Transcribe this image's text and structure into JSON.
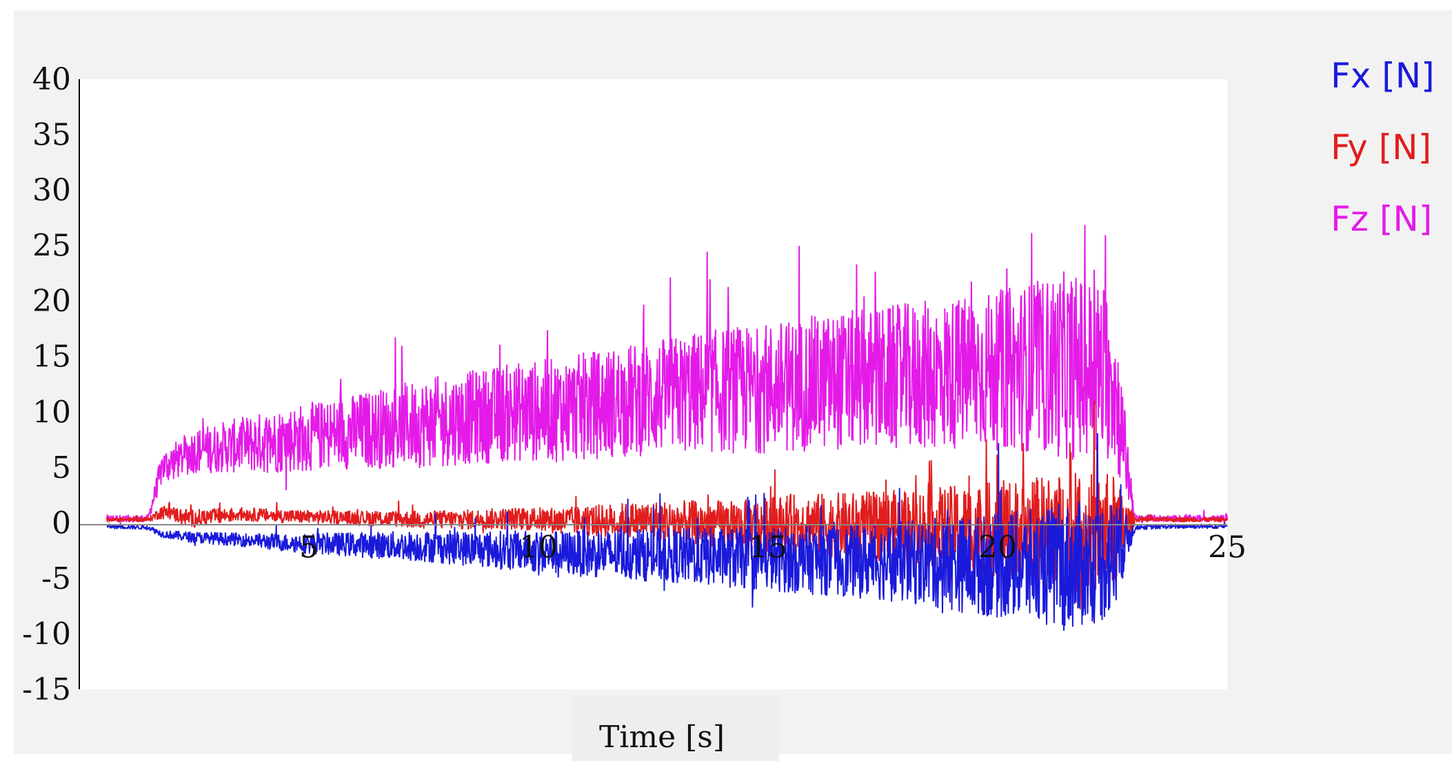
{
  "chart_data": {
    "type": "line",
    "xlabel": "Time [s]",
    "ylabel": "",
    "xlim": [
      0,
      25
    ],
    "ylim": [
      -15,
      40
    ],
    "x_ticks": [
      "5",
      "10",
      "15",
      "20",
      "25"
    ],
    "y_ticks": [
      "40",
      "35",
      "30",
      "25",
      "20",
      "15",
      "10",
      "5",
      "0",
      "-5",
      "-10",
      "-15"
    ],
    "grid": false,
    "legend_position": "right",
    "series": [
      {
        "name": "Fx [N]",
        "color": "#1a1adb",
        "x": [
          0.6,
          1.5,
          1.8,
          2.5,
          3.5,
          4.5,
          5.5,
          6.5,
          7.5,
          8.5,
          9.5,
          10.5,
          11.5,
          12.5,
          13.5,
          14.5,
          15.5,
          16.5,
          17.5,
          18.5,
          19.5,
          20.5,
          21.5,
          22.5,
          23.0,
          24.0,
          25.0
        ],
        "y": [
          -0.3,
          -0.4,
          -1.0,
          -1.3,
          -1.5,
          -1.8,
          -1.9,
          -2.0,
          -2.1,
          -2.3,
          -2.5,
          -2.7,
          -2.8,
          -2.9,
          -3.0,
          -3.2,
          -3.3,
          -3.4,
          -3.5,
          -3.6,
          -3.8,
          -3.9,
          -4.0,
          -3.2,
          -0.4,
          -0.3,
          -0.3
        ],
        "amplitude": [
          0.2,
          0.2,
          0.3,
          0.5,
          0.6,
          0.8,
          1.0,
          1.2,
          1.4,
          1.6,
          1.8,
          2.0,
          2.2,
          2.4,
          2.6,
          2.8,
          3.0,
          3.2,
          3.5,
          4.0,
          4.5,
          5.0,
          5.8,
          5.5,
          0.2,
          0.2,
          0.2
        ]
      },
      {
        "name": "Fy [N]",
        "color": "#e11d1d",
        "x": [
          0.6,
          1.5,
          1.8,
          2.5,
          3.5,
          4.5,
          5.5,
          6.5,
          7.5,
          8.5,
          9.5,
          10.5,
          11.5,
          12.5,
          13.5,
          14.5,
          15.5,
          16.5,
          17.5,
          18.5,
          19.5,
          20.5,
          21.5,
          22.5,
          23.0,
          24.0,
          25.0
        ],
        "y": [
          0.3,
          0.3,
          1.0,
          0.4,
          0.8,
          0.6,
          0.5,
          0.4,
          0.3,
          0.3,
          0.4,
          0.2,
          0.2,
          0.2,
          0.0,
          -0.2,
          0.0,
          -0.2,
          -0.3,
          -0.4,
          -0.5,
          -0.6,
          -1.0,
          -1.0,
          0.3,
          0.3,
          0.3
        ],
        "amplitude": [
          0.2,
          0.2,
          0.6,
          0.8,
          0.6,
          0.6,
          0.6,
          0.7,
          0.8,
          0.9,
          1.0,
          1.2,
          1.5,
          1.8,
          2.0,
          2.3,
          2.6,
          2.9,
          3.2,
          3.6,
          4.0,
          4.6,
          5.5,
          5.5,
          0.2,
          0.2,
          0.2
        ]
      },
      {
        "name": "Fz [N]",
        "color": "#e41be8",
        "x": [
          0.6,
          1.5,
          1.8,
          2.5,
          3.5,
          4.5,
          5.5,
          6.5,
          7.5,
          8.5,
          9.5,
          10.5,
          11.5,
          12.5,
          13.5,
          14.5,
          15.5,
          16.5,
          17.5,
          18.5,
          19.5,
          20.5,
          21.5,
          22.5,
          23.0,
          24.0,
          25.0
        ],
        "y": [
          0.4,
          0.4,
          5.0,
          6.5,
          7.0,
          7.5,
          8.0,
          8.5,
          9.0,
          9.5,
          10.0,
          10.2,
          10.8,
          11.3,
          11.8,
          12.0,
          12.4,
          12.8,
          13.0,
          13.3,
          13.6,
          14.0,
          14.2,
          13.5,
          0.4,
          0.4,
          0.4
        ],
        "amplitude": [
          0.3,
          0.3,
          1.5,
          2.0,
          2.5,
          3.0,
          3.2,
          3.6,
          4.0,
          4.2,
          4.5,
          4.7,
          5.0,
          5.2,
          5.5,
          5.8,
          6.0,
          6.2,
          6.5,
          6.8,
          7.0,
          7.5,
          8.5,
          8.0,
          0.3,
          0.3,
          0.3
        ]
      }
    ],
    "colors": {
      "axis": "#000000",
      "zero_line": "#888888",
      "plot_bg": "#ffffff",
      "panel_bg": "#f2f2f2"
    }
  },
  "legend": {
    "items": [
      {
        "label": "Fx [N]",
        "color": "#1a1adb"
      },
      {
        "label": "Fy [N]",
        "color": "#e11d1d"
      },
      {
        "label": "Fz [N]",
        "color": "#e41be8"
      }
    ]
  }
}
